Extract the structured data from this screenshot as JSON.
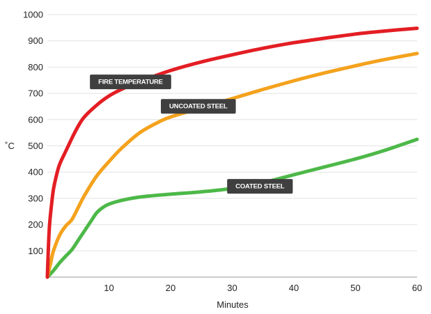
{
  "chart_data": {
    "type": "line",
    "title": "",
    "xlabel": "Minutes",
    "ylabel": "˚C",
    "xlim": [
      0,
      60
    ],
    "ylim": [
      0,
      1000
    ],
    "x_ticks": [
      10,
      20,
      30,
      40,
      50,
      60
    ],
    "y_ticks": [
      100,
      200,
      300,
      400,
      500,
      600,
      700,
      800,
      900,
      1000
    ],
    "grid": "horizontal",
    "legend": "none",
    "series": [
      {
        "name": "FIRE TEMPERATURE",
        "color": "#e31e24",
        "x": [
          0,
          0.3,
          0.7,
          1,
          1.5,
          2,
          3,
          4,
          5,
          6,
          8,
          10,
          12,
          15,
          20,
          25,
          30,
          35,
          40,
          45,
          50,
          55,
          60
        ],
        "y": [
          0,
          180,
          280,
          335,
          390,
          430,
          480,
          530,
          575,
          610,
          655,
          690,
          715,
          745,
          787,
          820,
          847,
          872,
          893,
          910,
          926,
          938,
          948
        ]
      },
      {
        "name": "UNCOATED STEEL",
        "color": "#f4a21d",
        "x": [
          0,
          0.5,
          1,
          2,
          3,
          4,
          5,
          6,
          8,
          10,
          12,
          15,
          18,
          20,
          25,
          30,
          35,
          40,
          45,
          50,
          55,
          60
        ],
        "y": [
          0,
          50,
          100,
          160,
          195,
          220,
          265,
          310,
          385,
          440,
          490,
          550,
          590,
          610,
          645,
          680,
          715,
          748,
          778,
          805,
          830,
          852
        ]
      },
      {
        "name": "COATED STEEL",
        "color": "#4db848",
        "x": [
          0,
          1,
          2,
          3,
          4,
          5,
          6,
          7,
          8,
          9,
          10,
          12,
          15,
          20,
          25,
          30,
          35,
          40,
          45,
          50,
          55,
          60
        ],
        "y": [
          0,
          25,
          55,
          80,
          105,
          140,
          175,
          210,
          245,
          265,
          278,
          292,
          305,
          316,
          325,
          338,
          360,
          390,
          420,
          450,
          485,
          525
        ]
      }
    ],
    "annotations": [
      {
        "text": "FIRE TEMPERATURE",
        "x": 13.5,
        "y": 745
      },
      {
        "text": "UNCOATED STEEL",
        "x": 24.5,
        "y": 652
      },
      {
        "text": "COATED STEEL",
        "x": 34.5,
        "y": 347
      }
    ]
  }
}
